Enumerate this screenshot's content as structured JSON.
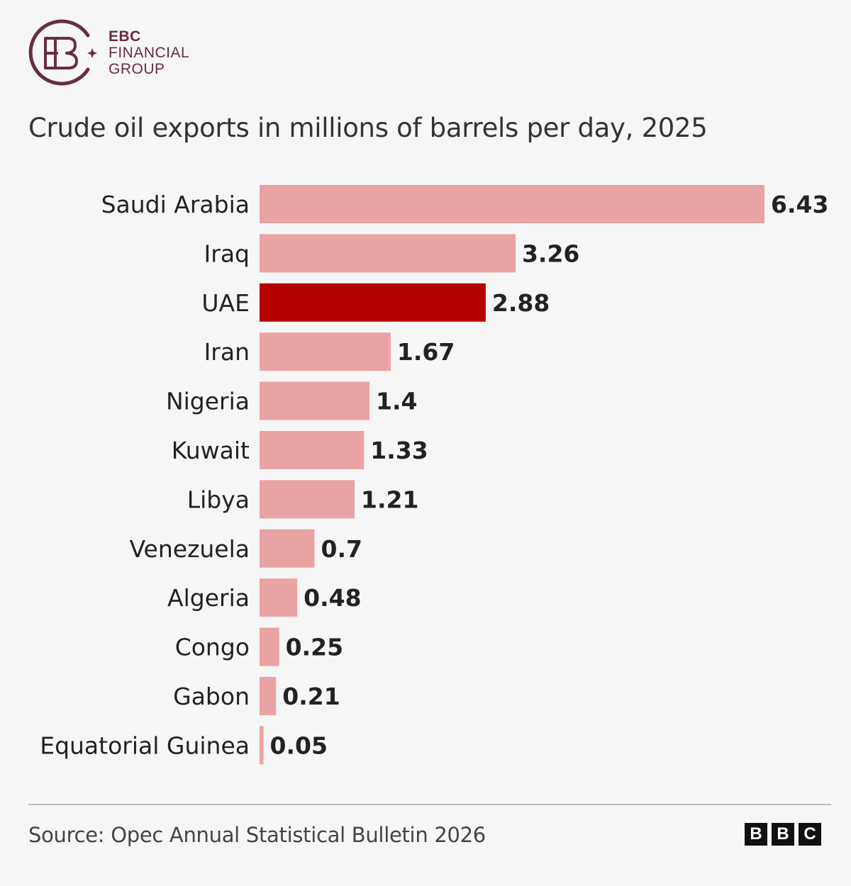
{
  "brand": {
    "line1": "EBC",
    "line2": "FINANCIAL",
    "line3": "GROUP",
    "color": "#6a2c3e"
  },
  "footer": {
    "source": "Source: Opec Annual Statistical Bulletin 2026",
    "publisher": [
      "B",
      "B",
      "C"
    ]
  },
  "colors": {
    "bar": "#eaa3a4",
    "highlight": "#b50000",
    "text": "#222222"
  },
  "chart_data": {
    "type": "bar",
    "orientation": "horizontal",
    "title": "Crude oil exports in millions of barrels per day, 2025",
    "categories": [
      "Saudi Arabia",
      "Iraq",
      "UAE",
      "Iran",
      "Nigeria",
      "Kuwait",
      "Libya",
      "Venezuela",
      "Algeria",
      "Congo",
      "Gabon",
      "Equatorial Guinea"
    ],
    "values": [
      6.43,
      3.26,
      2.88,
      1.67,
      1.4,
      1.33,
      1.21,
      0.7,
      0.48,
      0.25,
      0.21,
      0.05
    ],
    "value_labels": [
      "6.43",
      "3.26",
      "2.88",
      "1.67",
      "1.4",
      "1.33",
      "1.21",
      "0.7",
      "0.48",
      "0.25",
      "0.21",
      "0.05"
    ],
    "highlighted": "UAE",
    "xlim": [
      0,
      6.43
    ],
    "grid": false,
    "legend": "none"
  }
}
